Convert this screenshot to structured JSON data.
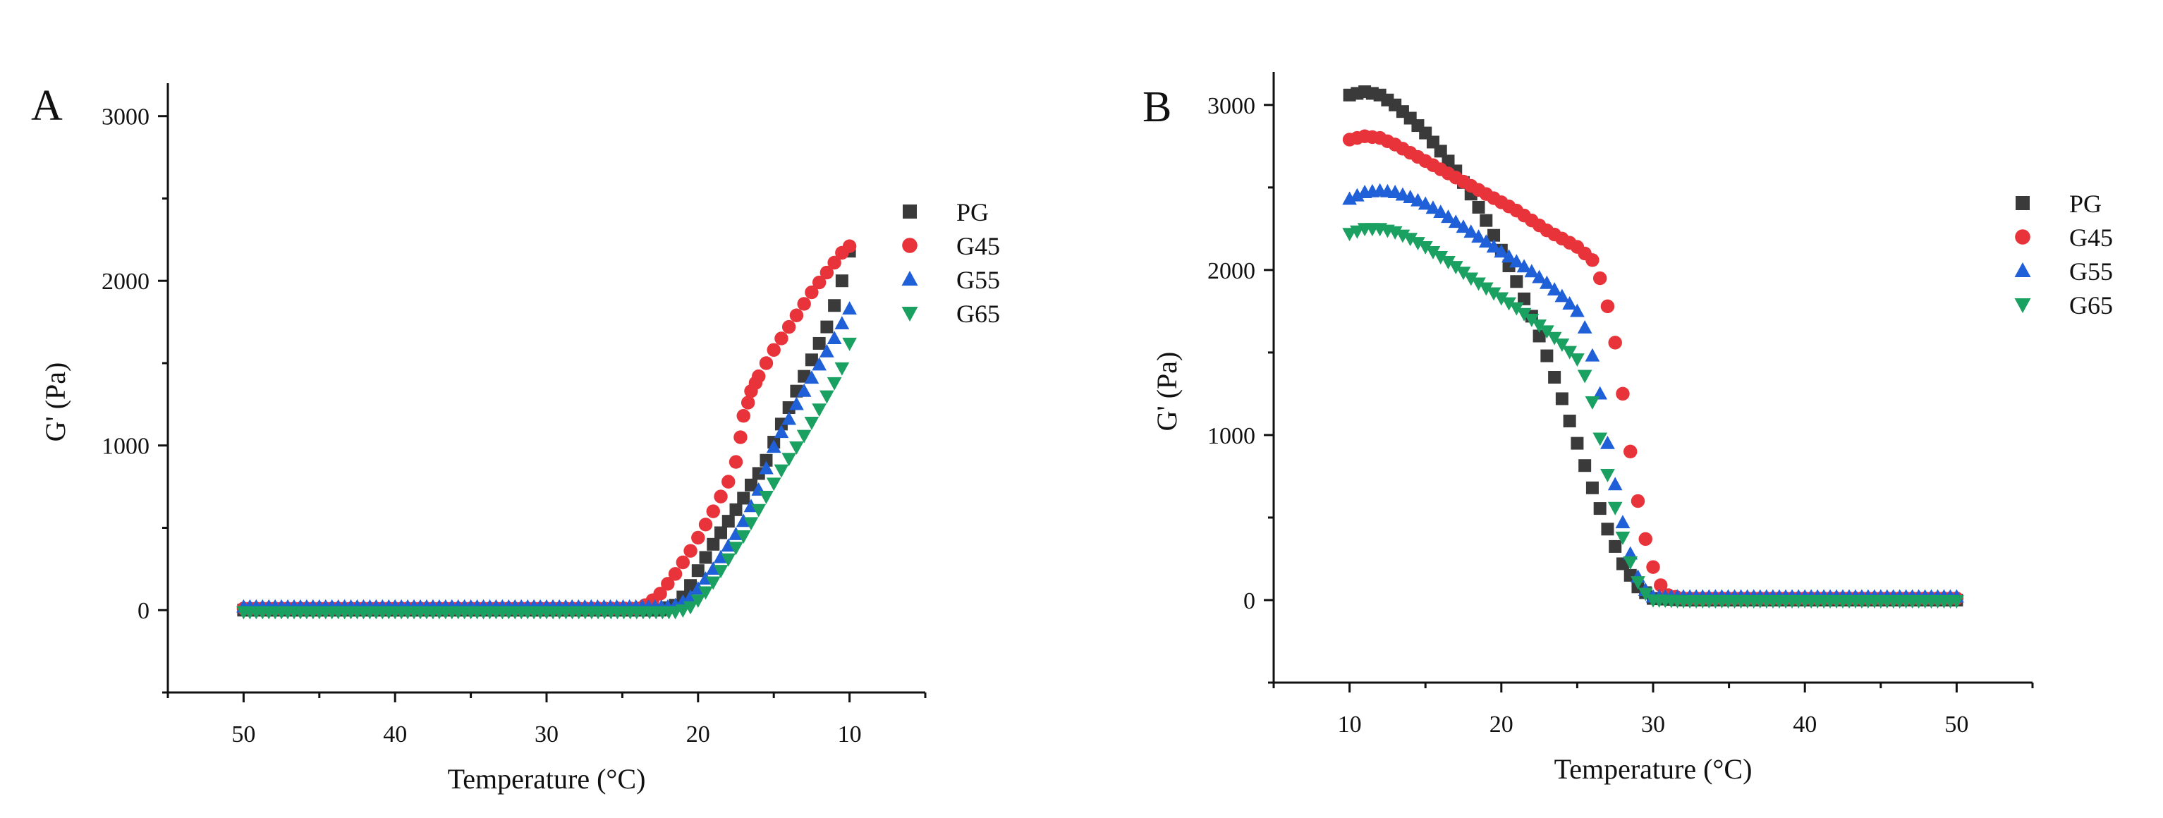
{
  "chart_data": [
    {
      "panel": "A",
      "type": "scatter",
      "xlabel": "Temperature (°C)",
      "ylabel": "G' (Pa)",
      "xlim": [
        55,
        5
      ],
      "ylim": [
        -500,
        3200
      ],
      "x_ticks": [
        50,
        40,
        30,
        20,
        10
      ],
      "y_ticks": [
        0,
        1000,
        2000,
        3000
      ],
      "legend_position": "right",
      "series": [
        {
          "name": "PG",
          "marker": "square",
          "color": "#3a3a3a",
          "points": [
            [
              50,
              0
            ],
            [
              30,
              0
            ],
            [
              22.5,
              0
            ],
            [
              21.5,
              30
            ],
            [
              21,
              80
            ],
            [
              20.5,
              150
            ],
            [
              20,
              240
            ],
            [
              19.5,
              320
            ],
            [
              19,
              400
            ],
            [
              18.5,
              470
            ],
            [
              18,
              540
            ],
            [
              17.5,
              610
            ],
            [
              17,
              680
            ],
            [
              16.5,
              760
            ],
            [
              16,
              830
            ],
            [
              15.5,
              910
            ],
            [
              15,
              1020
            ],
            [
              14.5,
              1130
            ],
            [
              14,
              1230
            ],
            [
              13.5,
              1330
            ],
            [
              13,
              1420
            ],
            [
              12.5,
              1520
            ],
            [
              12,
              1620
            ],
            [
              11.5,
              1720
            ],
            [
              11,
              1850
            ],
            [
              10.5,
              2000
            ],
            [
              10,
              2180
            ]
          ]
        },
        {
          "name": "G45",
          "marker": "circle",
          "color": "#e8333a",
          "points": [
            [
              50,
              10
            ],
            [
              30,
              10
            ],
            [
              24,
              10
            ],
            [
              23.5,
              30
            ],
            [
              23,
              60
            ],
            [
              22.5,
              100
            ],
            [
              22,
              160
            ],
            [
              21.5,
              220
            ],
            [
              21,
              290
            ],
            [
              20.5,
              360
            ],
            [
              20,
              440
            ],
            [
              19.5,
              520
            ],
            [
              19,
              600
            ],
            [
              18.5,
              690
            ],
            [
              18,
              780
            ],
            [
              17.5,
              900
            ],
            [
              17.2,
              1050
            ],
            [
              17,
              1180
            ],
            [
              16.7,
              1260
            ],
            [
              16.5,
              1330
            ],
            [
              16.2,
              1380
            ],
            [
              16,
              1420
            ],
            [
              15.5,
              1500
            ],
            [
              15,
              1580
            ],
            [
              14.5,
              1650
            ],
            [
              14,
              1720
            ],
            [
              13.5,
              1790
            ],
            [
              13,
              1860
            ],
            [
              12.5,
              1930
            ],
            [
              12,
              1990
            ],
            [
              11.5,
              2050
            ],
            [
              11,
              2110
            ],
            [
              10.5,
              2170
            ],
            [
              10,
              2210
            ]
          ]
        },
        {
          "name": "G55",
          "marker": "triangle-up",
          "color": "#1f5fd8",
          "points": [
            [
              50,
              20
            ],
            [
              30,
              20
            ],
            [
              22,
              20
            ],
            [
              21.5,
              30
            ],
            [
              21,
              50
            ],
            [
              20.5,
              80
            ],
            [
              20,
              130
            ],
            [
              19.5,
              190
            ],
            [
              19,
              250
            ],
            [
              18.5,
              320
            ],
            [
              18,
              390
            ],
            [
              17.5,
              460
            ],
            [
              17,
              540
            ],
            [
              16.5,
              630
            ],
            [
              16,
              730
            ],
            [
              15.5,
              860
            ],
            [
              15,
              990
            ],
            [
              14.5,
              1080
            ],
            [
              14,
              1160
            ],
            [
              13.5,
              1250
            ],
            [
              13,
              1330
            ],
            [
              12.5,
              1410
            ],
            [
              12,
              1490
            ],
            [
              11.5,
              1570
            ],
            [
              11,
              1650
            ],
            [
              10.5,
              1740
            ],
            [
              10,
              1830
            ]
          ]
        },
        {
          "name": "G65",
          "marker": "triangle-down",
          "color": "#1aa060",
          "points": [
            [
              50,
              -10
            ],
            [
              30,
              -10
            ],
            [
              21.5,
              -10
            ],
            [
              21,
              0
            ],
            [
              20.5,
              20
            ],
            [
              20,
              60
            ],
            [
              19.5,
              110
            ],
            [
              19,
              170
            ],
            [
              18.5,
              240
            ],
            [
              18,
              310
            ],
            [
              17.5,
              380
            ],
            [
              17,
              450
            ],
            [
              16.5,
              530
            ],
            [
              16,
              610
            ],
            [
              15.5,
              690
            ],
            [
              15,
              770
            ],
            [
              14.5,
              850
            ],
            [
              14,
              920
            ],
            [
              13.5,
              990
            ],
            [
              13,
              1060
            ],
            [
              12.5,
              1140
            ],
            [
              12,
              1220
            ],
            [
              11.5,
              1300
            ],
            [
              11,
              1380
            ],
            [
              10.5,
              1470
            ],
            [
              10,
              1620
            ]
          ]
        }
      ]
    },
    {
      "panel": "B",
      "type": "scatter",
      "xlabel": "Temperature (°C)",
      "ylabel": "G' (Pa)",
      "xlim": [
        5,
        55
      ],
      "ylim": [
        -500,
        3200
      ],
      "x_ticks": [
        10,
        20,
        30,
        40,
        50
      ],
      "y_ticks": [
        0,
        1000,
        2000,
        3000
      ],
      "legend_position": "right",
      "series": [
        {
          "name": "PG",
          "marker": "square",
          "color": "#3a3a3a",
          "points": [
            [
              10,
              3060
            ],
            [
              11,
              3080
            ],
            [
              12,
              3060
            ],
            [
              13,
              3000
            ],
            [
              14,
              2920
            ],
            [
              15,
              2830
            ],
            [
              16,
              2720
            ],
            [
              17,
              2600
            ],
            [
              18,
              2460
            ],
            [
              19,
              2300
            ],
            [
              20,
              2120
            ],
            [
              21,
              1930
            ],
            [
              22,
              1720
            ],
            [
              23,
              1480
            ],
            [
              24,
              1220
            ],
            [
              25,
              950
            ],
            [
              26,
              680
            ],
            [
              27,
              430
            ],
            [
              28,
              220
            ],
            [
              29,
              80
            ],
            [
              30,
              10
            ],
            [
              32,
              0
            ],
            [
              40,
              0
            ],
            [
              50,
              0
            ]
          ]
        },
        {
          "name": "G45",
          "marker": "circle",
          "color": "#e8333a",
          "points": [
            [
              10,
              2790
            ],
            [
              11,
              2810
            ],
            [
              12,
              2800
            ],
            [
              13,
              2760
            ],
            [
              14,
              2710
            ],
            [
              15,
              2660
            ],
            [
              16,
              2610
            ],
            [
              17,
              2560
            ],
            [
              18,
              2510
            ],
            [
              19,
              2460
            ],
            [
              20,
              2410
            ],
            [
              21,
              2360
            ],
            [
              22,
              2300
            ],
            [
              23,
              2240
            ],
            [
              24,
              2190
            ],
            [
              25,
              2140
            ],
            [
              26,
              2060
            ],
            [
              26.5,
              1950
            ],
            [
              27,
              1780
            ],
            [
              27.5,
              1560
            ],
            [
              28,
              1250
            ],
            [
              28.5,
              900
            ],
            [
              29,
              600
            ],
            [
              29.5,
              370
            ],
            [
              30,
              200
            ],
            [
              30.5,
              90
            ],
            [
              31,
              30
            ],
            [
              32,
              10
            ],
            [
              40,
              10
            ],
            [
              50,
              10
            ]
          ]
        },
        {
          "name": "G55",
          "marker": "triangle-up",
          "color": "#1f5fd8",
          "points": [
            [
              10,
              2430
            ],
            [
              11,
              2470
            ],
            [
              12,
              2480
            ],
            [
              13,
              2470
            ],
            [
              14,
              2440
            ],
            [
              15,
              2400
            ],
            [
              16,
              2350
            ],
            [
              17,
              2290
            ],
            [
              18,
              2230
            ],
            [
              19,
              2170
            ],
            [
              20,
              2110
            ],
            [
              21,
              2050
            ],
            [
              22,
              1990
            ],
            [
              23,
              1920
            ],
            [
              24,
              1840
            ],
            [
              25,
              1750
            ],
            [
              25.5,
              1650
            ],
            [
              26,
              1480
            ],
            [
              26.5,
              1250
            ],
            [
              27,
              950
            ],
            [
              27.5,
              700
            ],
            [
              28,
              470
            ],
            [
              28.5,
              280
            ],
            [
              29,
              140
            ],
            [
              29.5,
              60
            ],
            [
              30,
              20
            ],
            [
              32,
              20
            ],
            [
              40,
              20
            ],
            [
              50,
              20
            ]
          ]
        },
        {
          "name": "G65",
          "marker": "triangle-down",
          "color": "#1aa060",
          "points": [
            [
              10,
              2220
            ],
            [
              11,
              2250
            ],
            [
              12,
              2250
            ],
            [
              13,
              2230
            ],
            [
              14,
              2190
            ],
            [
              15,
              2140
            ],
            [
              16,
              2080
            ],
            [
              17,
              2020
            ],
            [
              18,
              1950
            ],
            [
              19,
              1890
            ],
            [
              20,
              1830
            ],
            [
              21,
              1770
            ],
            [
              22,
              1700
            ],
            [
              23,
              1630
            ],
            [
              24,
              1550
            ],
            [
              25,
              1460
            ],
            [
              25.5,
              1360
            ],
            [
              26,
              1200
            ],
            [
              26.5,
              980
            ],
            [
              27,
              760
            ],
            [
              27.5,
              560
            ],
            [
              28,
              380
            ],
            [
              28.5,
              230
            ],
            [
              29,
              110
            ],
            [
              29.5,
              40
            ],
            [
              30,
              0
            ],
            [
              32,
              -5
            ],
            [
              40,
              -5
            ],
            [
              50,
              -5
            ]
          ]
        }
      ]
    }
  ]
}
